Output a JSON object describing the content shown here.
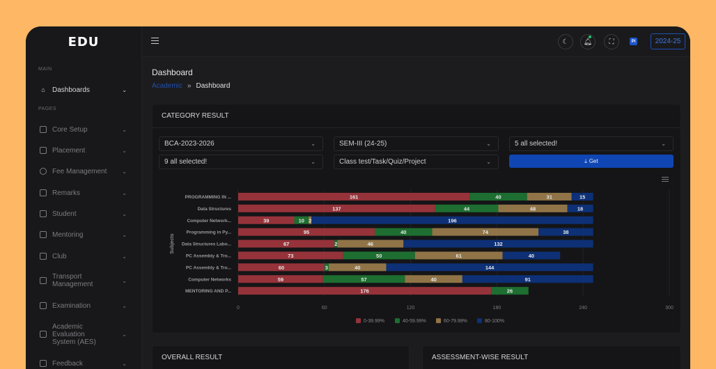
{
  "app": {
    "logo": "EDU"
  },
  "sidebar": {
    "section_main": "MAIN",
    "section_pages": "PAGES",
    "items": [
      {
        "label": "Dashboards",
        "icon": "home-icon"
      },
      {
        "label": "Core Setup",
        "icon": "setup-icon"
      },
      {
        "label": "Placement",
        "icon": "placement-icon"
      },
      {
        "label": "Fee Management",
        "icon": "fee-icon"
      },
      {
        "label": "Remarks",
        "icon": "remarks-icon"
      },
      {
        "label": "Student",
        "icon": "student-icon"
      },
      {
        "label": "Mentoring",
        "icon": "mentoring-icon"
      },
      {
        "label": "Club",
        "icon": "club-icon"
      },
      {
        "label": "Transport Management",
        "icon": "transport-icon"
      },
      {
        "label": "Examination",
        "icon": "exam-icon"
      },
      {
        "label": "Academic Evaluation System (AES)",
        "icon": "aes-icon"
      },
      {
        "label": "Feedback",
        "icon": "feedback-icon"
      }
    ]
  },
  "topbar": {
    "academic_year": "2024-25",
    "profile_initials": "PI"
  },
  "page": {
    "title": "Dashboard",
    "breadcrumb": {
      "link": "Academic",
      "separator": "»",
      "current": "Dashboard"
    }
  },
  "category_card": {
    "title": "CATEGORY RESULT",
    "filters": {
      "program": "BCA-2023-2026",
      "semester": "SEM-III (24-25)",
      "subjects": "5 all selected!",
      "sections": "9 all selected!",
      "assessment": "Class test/Task/Quiz/Project"
    },
    "get_label": "Get"
  },
  "bottom_cards": {
    "overall": "OVERALL RESULT",
    "assessment": "ASSESSMENT-WISE RESULT"
  },
  "chart_data": {
    "type": "bar",
    "orientation": "horizontal",
    "stacked": true,
    "ylabel": "Subjects",
    "categories": [
      "PROGRAMMING IN ...",
      "Data Structures",
      "Computer Network...",
      "Programming in Py...",
      "Data Structures Labo...",
      "PC Assembly & Tro...",
      "PC Assembly & Tro...",
      "Computer Networks",
      "MENTORING AND P..."
    ],
    "series": [
      {
        "name": "0-39.99%",
        "color": "#96333a",
        "values": [
          161,
          137,
          39,
          95,
          67,
          73,
          60,
          59,
          176
        ]
      },
      {
        "name": "40-59.99%",
        "color": "#1d6e30",
        "values": [
          40,
          44,
          10,
          40,
          2,
          50,
          3,
          57,
          26
        ]
      },
      {
        "name": "60-79.99%",
        "color": "#907447",
        "values": [
          31,
          48,
          2,
          74,
          46,
          61,
          40,
          40,
          0
        ]
      },
      {
        "name": "80-100%",
        "color": "#0d3076",
        "values": [
          15,
          18,
          196,
          38,
          132,
          40,
          144,
          91,
          0
        ]
      }
    ],
    "xlim": [
      0,
      300
    ],
    "xticks": [
      0,
      60,
      120,
      180,
      240,
      300
    ],
    "legend_position": "bottom-center"
  }
}
